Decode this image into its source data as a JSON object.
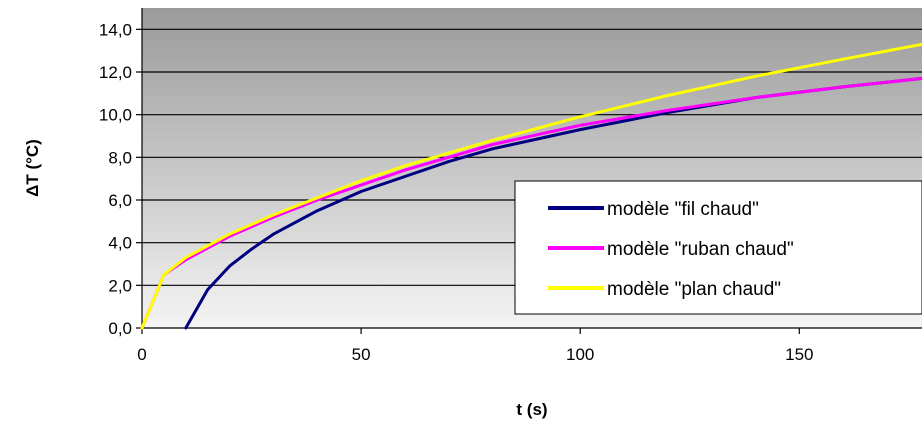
{
  "chart_data": {
    "type": "line",
    "title": "",
    "xlabel": "t (s)",
    "ylabel": "ΔT (°C)",
    "xlim": [
      0,
      178
    ],
    "ylim": [
      0,
      15
    ],
    "x_ticks": [
      {
        "value": 0,
        "label": "0"
      },
      {
        "value": 50,
        "label": "50"
      },
      {
        "value": 100,
        "label": "100"
      },
      {
        "value": 150,
        "label": "150"
      }
    ],
    "y_ticks": [
      {
        "value": 0,
        "label": "0,0"
      },
      {
        "value": 2,
        "label": "2,0"
      },
      {
        "value": 4,
        "label": "4,0"
      },
      {
        "value": 6,
        "label": "6,0"
      },
      {
        "value": 8,
        "label": "8,0"
      },
      {
        "value": 10,
        "label": "10,0"
      },
      {
        "value": 12,
        "label": "12,0"
      },
      {
        "value": 14,
        "label": "14,0"
      }
    ],
    "grid": "horizontal",
    "legend_position": "bottom-right",
    "series": [
      {
        "name": "modèle \"fil chaud\"",
        "color": "#000080",
        "x": [
          10,
          15,
          20,
          25,
          30,
          40,
          50,
          60,
          70,
          80,
          100,
          120,
          140,
          160,
          178
        ],
        "y": [
          0,
          1.8,
          2.9,
          3.7,
          4.4,
          5.5,
          6.4,
          7.1,
          7.8,
          8.4,
          9.3,
          10.1,
          10.8,
          11.3,
          11.7
        ]
      },
      {
        "name": "modèle \"ruban chaud\"",
        "color": "#ff00ff",
        "x": [
          0,
          5,
          10,
          20,
          30,
          40,
          50,
          60,
          70,
          80,
          100,
          120,
          140,
          160,
          178
        ],
        "y": [
          0,
          2.5,
          3.2,
          4.3,
          5.2,
          6.0,
          6.7,
          7.4,
          8.0,
          8.6,
          9.5,
          10.2,
          10.8,
          11.3,
          11.7
        ]
      },
      {
        "name": "modèle \"plan chaud\"",
        "color": "#ffff00",
        "x": [
          0,
          5,
          10,
          20,
          30,
          40,
          50,
          60,
          70,
          80,
          100,
          120,
          140,
          160,
          178
        ],
        "y": [
          0,
          2.5,
          3.3,
          4.4,
          5.3,
          6.1,
          6.9,
          7.6,
          8.2,
          8.8,
          9.9,
          10.9,
          11.8,
          12.6,
          13.3
        ]
      }
    ]
  }
}
